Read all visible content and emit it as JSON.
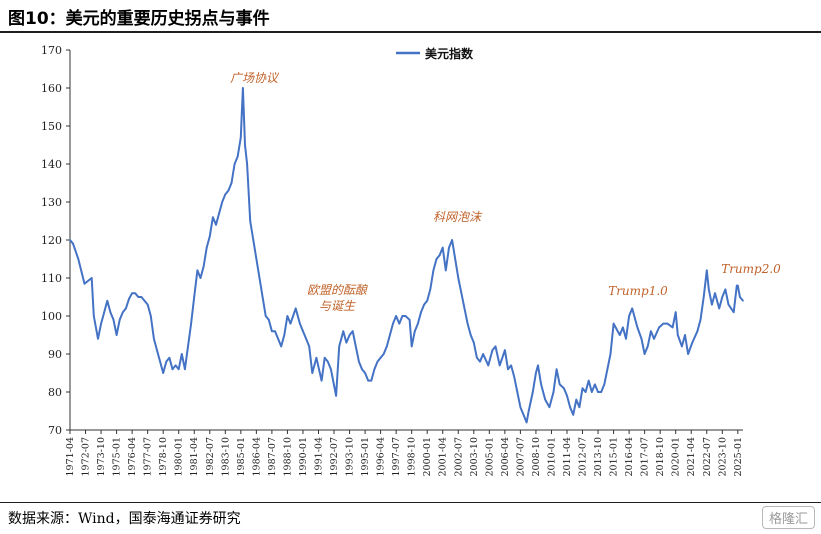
{
  "header": {
    "title": "图10：美元的重要历史拐点与事件"
  },
  "footer": {
    "source": "数据来源：Wind，国泰海通证券研究",
    "watermark": "格隆汇"
  },
  "colors": {
    "series": "#4472c4",
    "annotation": "#c0622a",
    "axis": "#333333"
  },
  "chart_data": {
    "type": "line",
    "title": "",
    "xlabel": "",
    "ylabel": "",
    "ylim": [
      70,
      170
    ],
    "yticks": [
      70,
      80,
      90,
      100,
      110,
      120,
      130,
      140,
      150,
      160,
      170
    ],
    "xticks": [
      "1971-04",
      "1972-07",
      "1973-10",
      "1975-01",
      "1976-04",
      "1977-07",
      "1978-10",
      "1980-01",
      "1981-04",
      "1982-07",
      "1983-10",
      "1985-01",
      "1986-04",
      "1987-07",
      "1988-10",
      "1990-01",
      "1991-04",
      "1992-07",
      "1993-10",
      "1995-01",
      "1996-04",
      "1997-07",
      "1998-10",
      "2000-01",
      "2001-04",
      "2002-07",
      "2003-10",
      "2005-01",
      "2006-04",
      "2007-07",
      "2008-10",
      "2010-01",
      "2011-04",
      "2012-07",
      "2013-10",
      "2015-01",
      "2016-04",
      "2017-07",
      "2018-10",
      "2020-01",
      "2021-04",
      "2022-07",
      "2023-10",
      "2025-01"
    ],
    "xrange": [
      "1971-04",
      "2025-06"
    ],
    "legend": {
      "position": "top-center",
      "entries": [
        "美元指数"
      ]
    },
    "grid": false,
    "series": [
      {
        "name": "美元指数",
        "x": [
          "1971-04",
          "1971-07",
          "1971-12",
          "1972-06",
          "1973-01",
          "1973-03",
          "1973-07",
          "1973-10",
          "1974-01",
          "1974-04",
          "1974-07",
          "1974-10",
          "1975-01",
          "1975-04",
          "1975-07",
          "1975-10",
          "1976-01",
          "1976-04",
          "1976-07",
          "1976-10",
          "1977-01",
          "1977-04",
          "1977-07",
          "1977-10",
          "1978-01",
          "1978-04",
          "1978-07",
          "1978-10",
          "1979-01",
          "1979-04",
          "1979-07",
          "1979-10",
          "1980-01",
          "1980-04",
          "1980-07",
          "1980-10",
          "1981-01",
          "1981-04",
          "1981-07",
          "1981-10",
          "1982-01",
          "1982-04",
          "1982-07",
          "1982-10",
          "1983-01",
          "1983-04",
          "1983-07",
          "1983-10",
          "1984-01",
          "1984-04",
          "1984-07",
          "1984-10",
          "1985-01",
          "1985-02",
          "1985-03",
          "1985-05",
          "1985-07",
          "1985-10",
          "1986-01",
          "1986-04",
          "1986-07",
          "1986-10",
          "1987-01",
          "1987-04",
          "1987-07",
          "1987-10",
          "1988-01",
          "1988-04",
          "1988-07",
          "1988-10",
          "1989-01",
          "1989-06",
          "1989-10",
          "1990-01",
          "1990-04",
          "1990-07",
          "1990-10",
          "1991-02",
          "1991-07",
          "1991-10",
          "1992-01",
          "1992-04",
          "1992-09",
          "1992-12",
          "1993-04",
          "1993-07",
          "1993-10",
          "1994-01",
          "1994-04",
          "1994-07",
          "1994-10",
          "1995-01",
          "1995-04",
          "1995-07",
          "1995-10",
          "1996-01",
          "1996-04",
          "1996-07",
          "1996-10",
          "1997-01",
          "1997-04",
          "1997-07",
          "1997-10",
          "1998-01",
          "1998-04",
          "1998-08",
          "1998-10",
          "1999-01",
          "1999-04",
          "1999-07",
          "1999-10",
          "2000-01",
          "2000-04",
          "2000-07",
          "2000-10",
          "2001-01",
          "2001-04",
          "2001-07",
          "2001-10",
          "2002-01",
          "2002-04",
          "2002-07",
          "2002-10",
          "2003-01",
          "2003-04",
          "2003-07",
          "2003-10",
          "2004-01",
          "2004-04",
          "2004-07",
          "2004-12",
          "2005-04",
          "2005-07",
          "2005-11",
          "2006-04",
          "2006-07",
          "2006-10",
          "2007-01",
          "2007-04",
          "2007-07",
          "2007-10",
          "2008-01",
          "2008-03",
          "2008-07",
          "2008-10",
          "2008-12",
          "2009-03",
          "2009-07",
          "2009-11",
          "2010-03",
          "2010-06",
          "2010-09",
          "2011-01",
          "2011-04",
          "2011-07",
          "2011-10",
          "2012-01",
          "2012-04",
          "2012-07",
          "2012-10",
          "2013-01",
          "2013-04",
          "2013-07",
          "2013-10",
          "2014-01",
          "2014-04",
          "2014-07",
          "2014-10",
          "2015-01",
          "2015-03",
          "2015-07",
          "2015-10",
          "2016-01",
          "2016-04",
          "2016-07",
          "2016-12",
          "2017-04",
          "2017-07",
          "2017-10",
          "2018-01",
          "2018-04",
          "2018-09",
          "2019-01",
          "2019-05",
          "2019-10",
          "2020-01",
          "2020-03",
          "2020-07",
          "2020-10",
          "2021-01",
          "2021-05",
          "2021-10",
          "2022-01",
          "2022-04",
          "2022-07",
          "2022-09",
          "2022-12",
          "2023-03",
          "2023-07",
          "2023-10",
          "2024-01",
          "2024-04",
          "2024-09",
          "2024-12",
          "2025-01",
          "2025-03",
          "2025-06"
        ],
        "values": [
          120,
          119,
          115,
          108.5,
          110,
          100,
          94,
          98,
          101,
          104,
          101,
          99,
          95,
          99,
          101,
          102,
          104.5,
          106,
          106,
          105,
          105,
          104,
          103,
          100,
          94,
          91,
          88,
          85,
          88,
          89,
          86,
          87,
          86,
          90,
          86,
          92,
          98,
          105,
          112,
          110,
          113,
          118,
          121,
          126,
          124,
          127,
          130,
          132,
          133,
          135,
          140,
          142,
          147,
          154,
          160,
          145,
          140,
          125,
          120,
          115,
          110,
          105,
          100,
          99,
          96,
          96,
          94,
          92,
          95,
          100,
          98,
          102,
          98,
          96,
          94,
          92,
          85,
          89,
          83,
          89,
          88,
          86,
          79,
          92,
          96,
          93,
          95,
          96,
          92,
          88,
          86,
          85,
          83,
          83,
          86,
          88,
          89,
          90,
          92,
          95,
          98,
          100,
          98,
          100,
          100,
          99,
          92,
          96,
          98,
          101,
          103,
          104,
          107,
          112,
          115,
          116,
          118,
          112,
          118,
          120,
          115,
          110,
          106,
          102,
          98,
          95,
          93,
          89,
          88,
          90,
          87,
          91,
          92,
          87,
          91,
          86,
          87,
          84,
          80,
          76,
          74,
          72,
          75,
          80,
          85,
          87,
          82,
          78,
          76,
          80,
          86,
          82,
          81,
          79,
          76,
          74,
          78,
          76,
          81,
          80,
          83,
          80,
          82,
          80,
          80,
          82,
          86,
          90,
          98,
          97,
          95,
          97,
          94,
          100,
          102,
          97,
          94,
          90,
          92,
          96,
          94,
          97,
          98,
          98,
          97,
          101,
          95,
          92,
          95,
          90,
          93,
          96,
          99,
          105,
          112,
          107,
          103,
          106,
          102,
          105,
          107,
          103,
          101,
          108,
          108,
          105,
          104
        ]
      }
    ],
    "annotations": [
      {
        "text": "广场协议",
        "x": "1985-02",
        "y": 160
      },
      {
        "text": "欧盟的酝酿",
        "x": "1991-10",
        "y": 103
      },
      {
        "text": "与诞生",
        "x": "1991-10",
        "y": 103
      },
      {
        "text": "科网泡沫",
        "x": "2002-01",
        "y": 120
      },
      {
        "text": "Trump1.0",
        "x": "2016-12",
        "y": 102
      },
      {
        "text": "Trump2.0",
        "x": "2025-01",
        "y": 110
      }
    ]
  }
}
